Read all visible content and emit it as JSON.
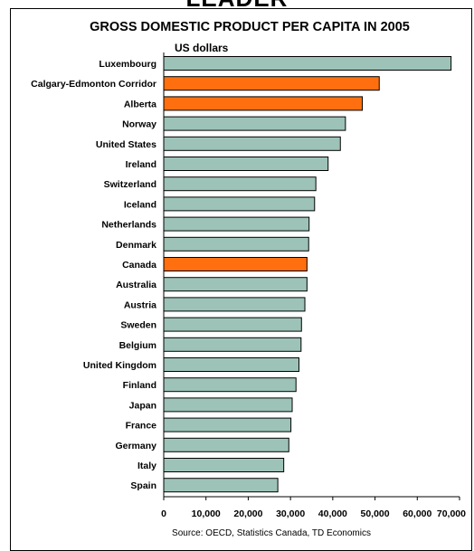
{
  "page_heading_cut": "LEADER",
  "chart_data": {
    "type": "bar",
    "orientation": "horizontal",
    "title": "GROSS DOMESTIC PRODUCT PER CAPITA IN 2005",
    "subtitle": "US dollars",
    "source": "Source: OECD, Statistics Canada, TD Economics",
    "categories": [
      "Luxembourg",
      "Calgary-Edmonton Corridor",
      "Alberta",
      "Norway",
      "United States",
      "Ireland",
      "Switzerland",
      "Iceland",
      "Netherlands",
      "Denmark",
      "Canada",
      "Australia",
      "Austria",
      "Sweden",
      "Belgium",
      "United Kingdom",
      "Finland",
      "Japan",
      "France",
      "Germany",
      "Italy",
      "Spain"
    ],
    "values": [
      68000,
      51000,
      47000,
      43000,
      41800,
      38900,
      36000,
      35700,
      34400,
      34300,
      33900,
      33900,
      33400,
      32600,
      32500,
      32000,
      31300,
      30400,
      30100,
      29600,
      28400,
      27000
    ],
    "highlighted": [
      "Calgary-Edmonton Corridor",
      "Alberta",
      "Canada"
    ],
    "x_ticks": [
      "0",
      "10,000",
      "20,000",
      "30,000",
      "40,000",
      "50,000",
      "60,000",
      "70,000"
    ],
    "xlim": [
      0,
      70000
    ],
    "grid": false,
    "colors": {
      "bar": "#9dc3b8",
      "highlight": "#ff6f0f",
      "edge": "#000000"
    }
  }
}
